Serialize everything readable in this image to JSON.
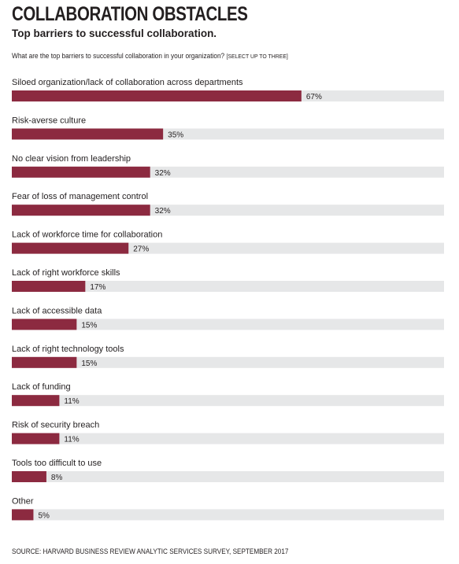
{
  "header": {
    "title": "COLLABORATION OBSTACLES",
    "subtitle": "Top barriers to successful collaboration.",
    "question": "What are the top barriers to successful collaboration in your organization?",
    "question_note": "[SELECT UP TO THREE]"
  },
  "footer": {
    "source": "SOURCE: HARVARD BUSINESS REVIEW ANALYTIC SERVICES SURVEY, SEPTEMBER 2017"
  },
  "colors": {
    "bar": "#8c2a40",
    "track": "#e6e7e8",
    "text": "#231f20"
  },
  "chart_data": {
    "type": "bar",
    "orientation": "horizontal",
    "title": "COLLABORATION OBSTACLES",
    "subtitle": "Top barriers to successful collaboration.",
    "xlim": [
      0,
      100
    ],
    "value_suffix": "%",
    "grid": false,
    "legend": "none",
    "categories": [
      "Siloed organization/lack of collaboration across departments",
      "Risk-averse culture",
      "No clear vision from leadership",
      "Fear of loss of management control",
      "Lack of workforce time for collaboration",
      "Lack of right workforce skills",
      "Lack of accessible data",
      "Lack of right technology tools",
      "Lack of funding",
      "Risk of security breach",
      "Tools too difficult to use",
      "Other"
    ],
    "values": [
      67,
      35,
      32,
      32,
      27,
      17,
      15,
      15,
      11,
      11,
      8,
      5
    ],
    "labels": [
      "67%",
      "35%",
      "32%",
      "32%",
      "27%",
      "17%",
      "15%",
      "15%",
      "11%",
      "11%",
      "8%",
      "5%"
    ]
  }
}
